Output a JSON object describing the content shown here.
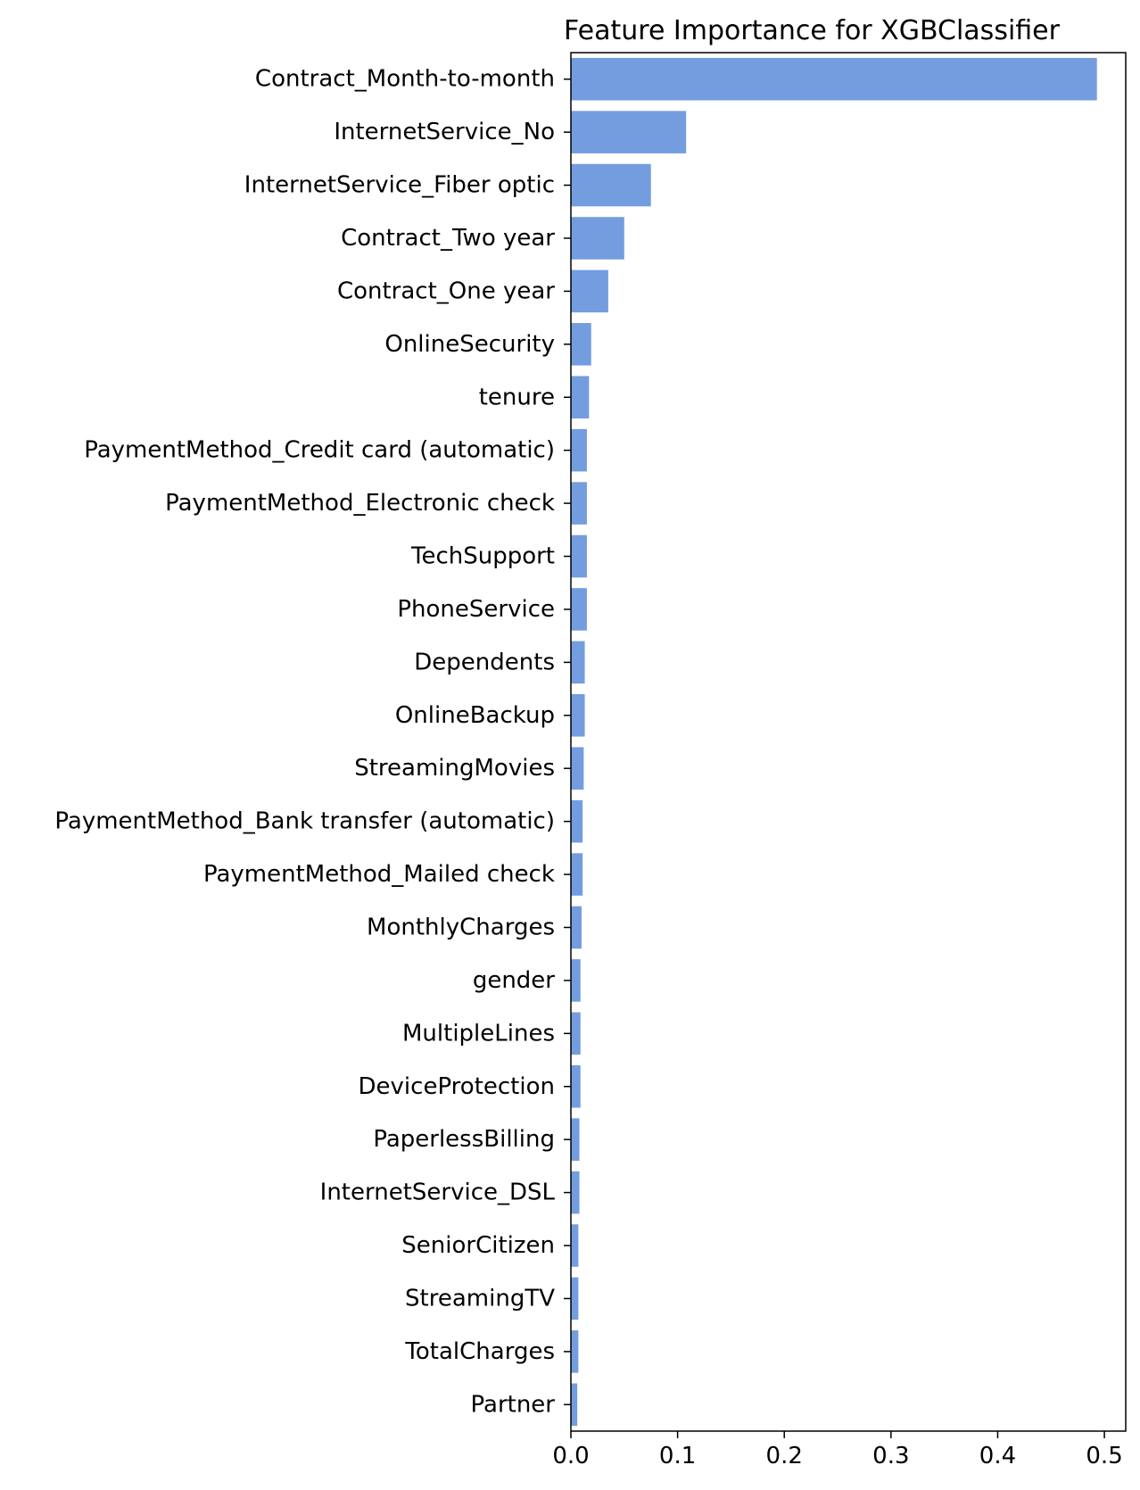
{
  "chart_data": {
    "type": "bar",
    "orientation": "horizontal",
    "title": "Feature Importance for XGBClassifier",
    "xlabel": "",
    "ylabel": "",
    "categories": [
      "Contract_Month-to-month",
      "InternetService_No",
      "InternetService_Fiber optic",
      "Contract_Two year",
      "Contract_One year",
      "OnlineSecurity",
      "tenure",
      "PaymentMethod_Credit card (automatic)",
      "PaymentMethod_Electronic check",
      "TechSupport",
      "PhoneService",
      "Dependents",
      "OnlineBackup",
      "StreamingMovies",
      "PaymentMethod_Bank transfer (automatic)",
      "PaymentMethod_Mailed check",
      "MonthlyCharges",
      "gender",
      "MultipleLines",
      "DeviceProtection",
      "PaperlessBilling",
      "InternetService_DSL",
      "SeniorCitizen",
      "StreamingTV",
      "TotalCharges",
      "Partner"
    ],
    "values": [
      0.493,
      0.108,
      0.075,
      0.05,
      0.035,
      0.019,
      0.017,
      0.015,
      0.015,
      0.015,
      0.015,
      0.013,
      0.013,
      0.012,
      0.011,
      0.011,
      0.01,
      0.009,
      0.009,
      0.009,
      0.008,
      0.008,
      0.007,
      0.007,
      0.007,
      0.006
    ],
    "xlim": [
      0,
      0.52
    ],
    "xticks": [
      0.0,
      0.1,
      0.2,
      0.3,
      0.4,
      0.5
    ],
    "xtick_labels": [
      "0.0",
      "0.1",
      "0.2",
      "0.3",
      "0.4",
      "0.5"
    ],
    "grid": false,
    "bar_color": "#739ddf",
    "legend": null
  }
}
